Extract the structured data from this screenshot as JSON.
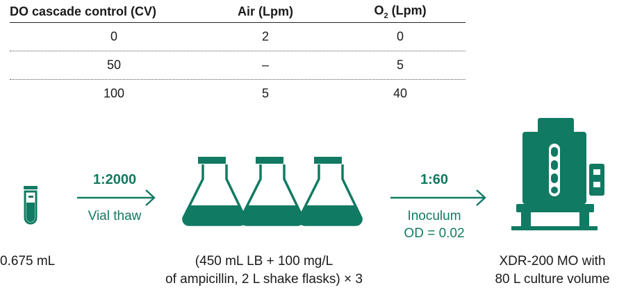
{
  "table": {
    "headers": [
      "DO cascade control (CV)",
      "Air (Lpm)",
      "O",
      "2",
      " (Lpm)"
    ],
    "rows": [
      [
        "0",
        "2",
        "0"
      ],
      [
        "50",
        "–",
        "5"
      ],
      [
        "100",
        "5",
        "40"
      ]
    ]
  },
  "flow": {
    "step1_ratio": "1:2000",
    "step1_label": "Vial thaw",
    "step2_ratio": "1:60",
    "step2_label_line1": "Inoculum",
    "step2_label_line2": "OD = 0.02",
    "vial_caption": "0.675 mL",
    "flask_caption_line1": "(450 mL LB + 100 mg/L",
    "flask_caption_line2": "of ampicillin, 2 L shake flasks) × 3",
    "bioreactor_caption_line1": "XDR-200 MO with",
    "bioreactor_caption_line2": "80 L culture volume"
  },
  "colors": {
    "accent": "#117a62",
    "text": "#1a1a1a"
  }
}
